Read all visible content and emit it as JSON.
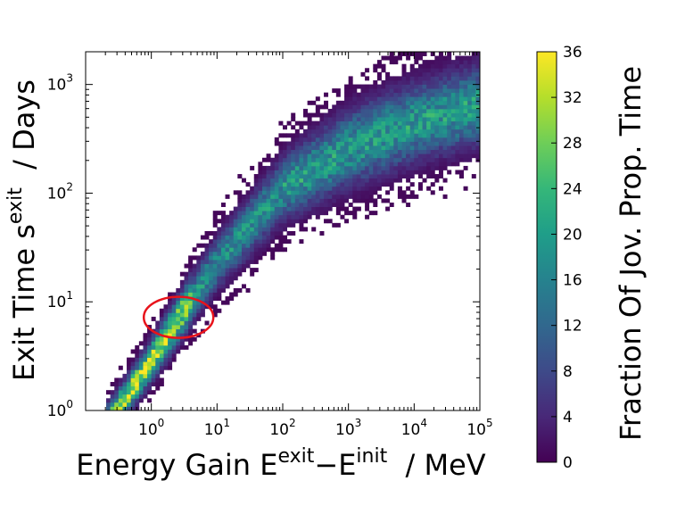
{
  "chart_data": {
    "type": "heatmap",
    "xlabel": {
      "main": "Energy Gain E",
      "sup1": "exit",
      "mid": "−E",
      "sup2": "init",
      "tail": "  / MeV"
    },
    "ylabel": {
      "main": "Exit Time s",
      "sup": "exit",
      "tail": "  / Days"
    },
    "x_scale": "log",
    "y_scale": "log",
    "xlim": [
      0.1,
      100000
    ],
    "ylim": [
      1,
      2000
    ],
    "x_ticks": [
      {
        "base": "10",
        "exp": "0",
        "value": 1
      },
      {
        "base": "10",
        "exp": "1",
        "value": 10
      },
      {
        "base": "10",
        "exp": "2",
        "value": 100
      },
      {
        "base": "10",
        "exp": "3",
        "value": 1000
      },
      {
        "base": "10",
        "exp": "4",
        "value": 10000
      },
      {
        "base": "10",
        "exp": "5",
        "value": 100000
      }
    ],
    "y_ticks": [
      {
        "base": "10",
        "exp": "0",
        "value": 1
      },
      {
        "base": "10",
        "exp": "1",
        "value": 10
      },
      {
        "base": "10",
        "exp": "2",
        "value": 100
      },
      {
        "base": "10",
        "exp": "3",
        "value": 1000
      }
    ],
    "colormap": "viridis",
    "colorbar": {
      "label": "Fraction Of Jov. Prop. Time",
      "range": [
        0,
        36
      ],
      "ticks": [
        "0",
        "4",
        "8",
        "12",
        "16",
        "20",
        "24",
        "28",
        "32",
        "36"
      ]
    },
    "density_ridge": {
      "description": "Joint distribution of exit energy gain vs exit time",
      "ridge_points": [
        {
          "x": 0.3,
          "y": 1.0
        },
        {
          "x": 1.0,
          "y": 2.9
        },
        {
          "x": 3.0,
          "y": 8
        },
        {
          "x": 10,
          "y": 23
        },
        {
          "x": 100,
          "y": 110
        },
        {
          "x": 1000,
          "y": 260
        },
        {
          "x": 10000,
          "y": 450
        },
        {
          "x": 100000,
          "y": 650
        }
      ],
      "peak_value": 36
    },
    "annotation": {
      "type": "ellipse",
      "color": "#e8131b",
      "center": {
        "x": 2.6,
        "y": 7.2
      },
      "note": "highlighted region"
    }
  }
}
